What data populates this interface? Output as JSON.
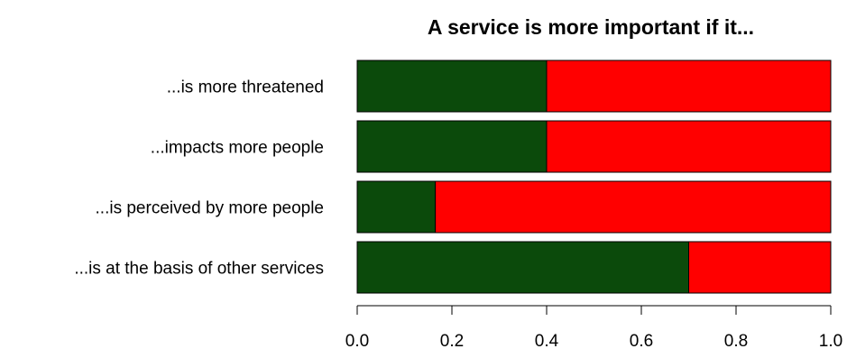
{
  "chart_data": {
    "type": "bar",
    "orientation": "horizontal",
    "stacked": true,
    "title": "A service is more important if it...",
    "xlabel": "",
    "ylabel": "",
    "xlim": [
      0,
      1
    ],
    "categories": [
      "...is more threatened",
      "...impacts more people",
      "...is perceived by more people",
      "...is at the basis of other services"
    ],
    "series": [
      {
        "color": "#0b4a0b",
        "values": [
          0.4,
          0.4,
          0.165,
          0.7
        ]
      },
      {
        "color": "#ff0000",
        "values": [
          0.6,
          0.6,
          0.835,
          0.3
        ]
      }
    ],
    "x_ticks": [
      "0.0",
      "0.2",
      "0.4",
      "0.6",
      "0.8",
      "1.0"
    ],
    "grid": false,
    "legend": "none"
  }
}
